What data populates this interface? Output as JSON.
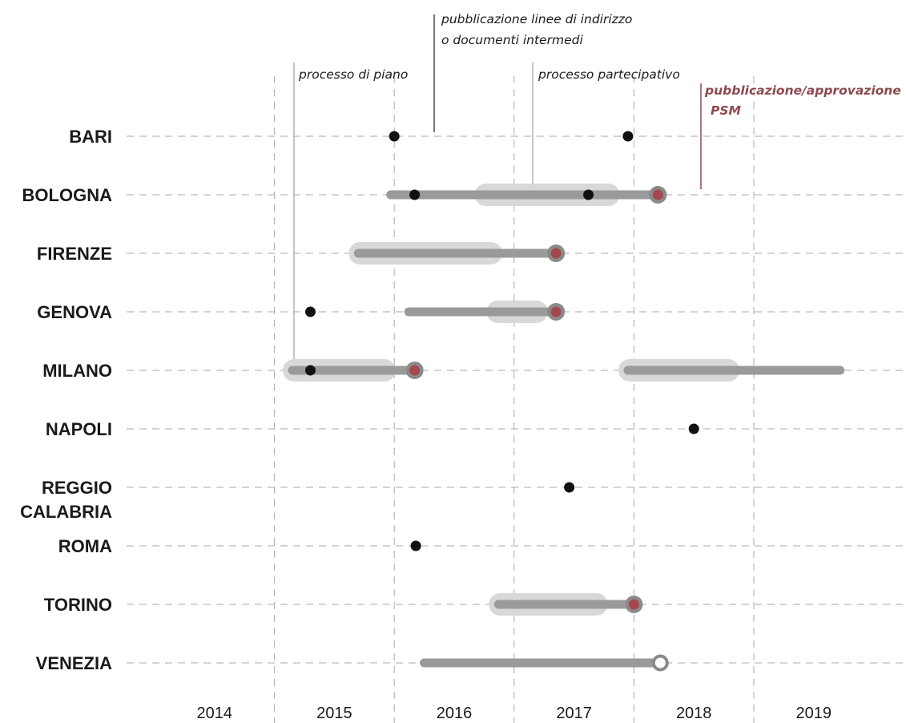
{
  "chart_data": {
    "type": "timeline",
    "x_axis": {
      "ticks": [
        "2014",
        "2015",
        "2016",
        "2017",
        "2018",
        "2019"
      ],
      "range": [
        2014,
        2020
      ]
    },
    "colors": {
      "process_bar": "#9a9a9a",
      "participatory_band": "#d8d8d8",
      "document_dot": "#111111",
      "approval_dot": "#a5484e",
      "approval_ring": "#8a8a8a",
      "gridline": "#aaaaaa",
      "annotation_red": "#8e4a4f"
    },
    "annotations": {
      "planning_process": "processo di piano",
      "guidelines_line1": "pubblicazione linee di indirizzo",
      "guidelines_line2": "o documenti intermedi",
      "participatory": "processo partecipativo",
      "approval_line1": "pubblicazione/approvazione",
      "approval_line2": "PSM"
    },
    "rows": [
      {
        "city": [
          "BARI"
        ],
        "bars": [],
        "bands": [],
        "dots": [
          2016.0,
          2017.95
        ],
        "approvals": []
      },
      {
        "city": [
          "BOLOGNA"
        ],
        "bars": [
          [
            2015.97,
            2018.2
          ]
        ],
        "bands": [
          [
            2016.75,
            2017.8
          ]
        ],
        "dots": [
          2016.17,
          2017.62
        ],
        "approvals": [
          {
            "x": 2018.2,
            "filled": true
          }
        ]
      },
      {
        "city": [
          "FIRENZE"
        ],
        "bars": [
          [
            2015.7,
            2017.35
          ]
        ],
        "bands": [
          [
            2015.7,
            2016.82
          ]
        ],
        "dots": [],
        "approvals": [
          {
            "x": 2017.35,
            "filled": true
          }
        ]
      },
      {
        "city": [
          "GENOVA"
        ],
        "bars": [
          [
            2016.12,
            2017.35
          ]
        ],
        "bands": [
          [
            2016.85,
            2017.2
          ]
        ],
        "dots": [
          2015.3
        ],
        "approvals": [
          {
            "x": 2017.35,
            "filled": true
          }
        ]
      },
      {
        "city": [
          "MILANO"
        ],
        "bars": [
          [
            2015.15,
            2016.17
          ],
          [
            2017.95,
            2019.72
          ]
        ],
        "bands": [
          [
            2015.15,
            2015.93
          ],
          [
            2017.95,
            2018.8
          ]
        ],
        "dots": [
          2015.3
        ],
        "approvals": [
          {
            "x": 2016.17,
            "filled": true
          }
        ]
      },
      {
        "city": [
          "NAPOLI"
        ],
        "bars": [],
        "bands": [],
        "dots": [
          2018.5
        ],
        "approvals": []
      },
      {
        "city": [
          "REGGIO",
          "CALABRIA"
        ],
        "bars": [],
        "bands": [],
        "dots": [
          2017.46
        ],
        "approvals": []
      },
      {
        "city": [
          "ROMA"
        ],
        "bars": [],
        "bands": [],
        "dots": [
          2016.18
        ],
        "approvals": []
      },
      {
        "city": [
          "TORINO"
        ],
        "bars": [
          [
            2016.87,
            2018.0
          ]
        ],
        "bands": [
          [
            2016.87,
            2017.7
          ]
        ],
        "dots": [],
        "approvals": [
          {
            "x": 2018.0,
            "filled": true
          }
        ]
      },
      {
        "city": [
          "VENEZIA"
        ],
        "bars": [
          [
            2016.25,
            2018.22
          ]
        ],
        "bands": [],
        "dots": [],
        "approvals": [
          {
            "x": 2018.22,
            "filled": false
          }
        ]
      }
    ]
  }
}
